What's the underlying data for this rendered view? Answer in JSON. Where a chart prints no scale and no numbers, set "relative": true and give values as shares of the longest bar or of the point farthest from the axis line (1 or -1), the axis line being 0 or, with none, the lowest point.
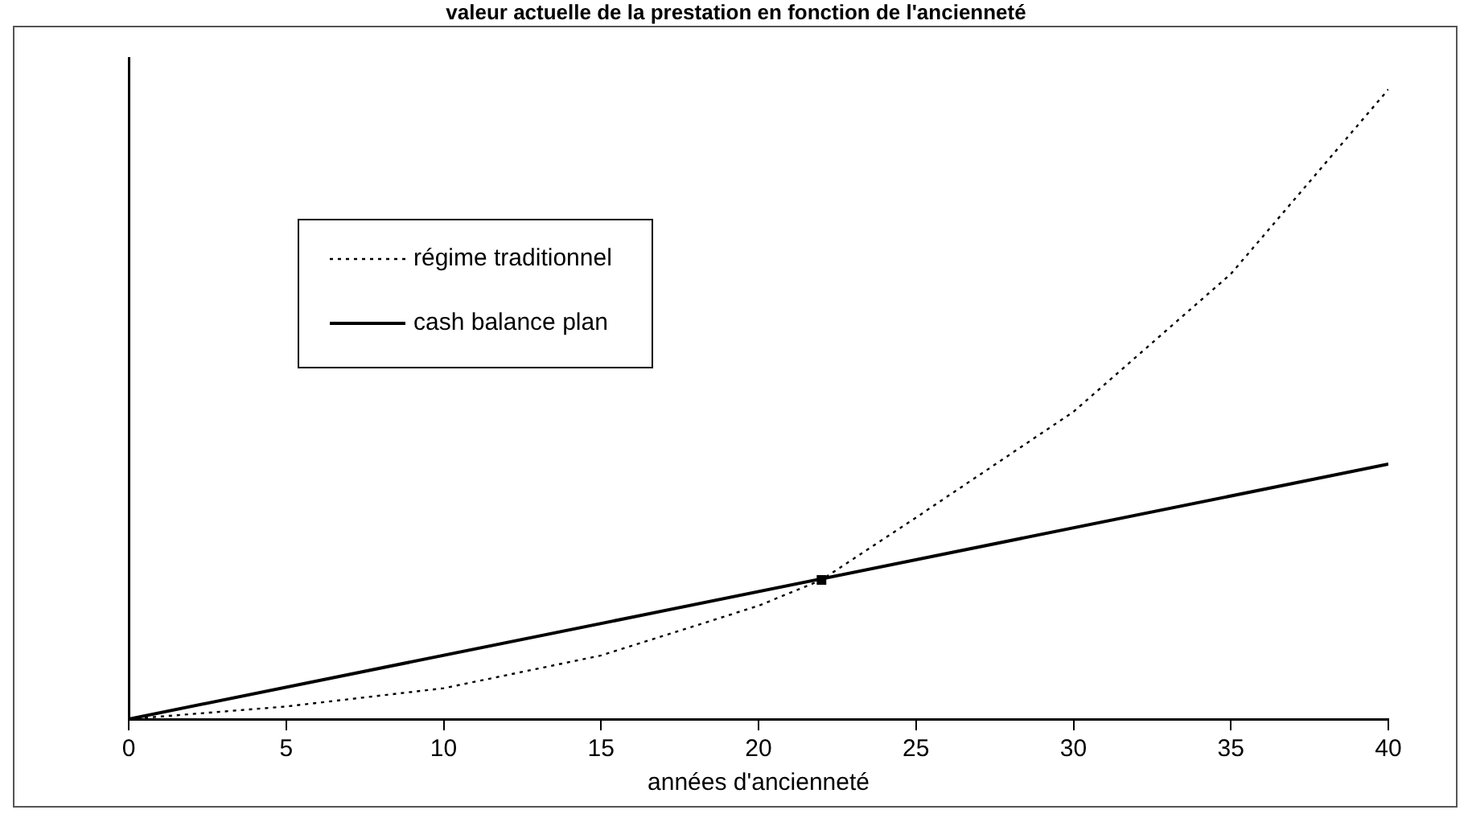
{
  "chart_data": {
    "type": "line",
    "title": "valeur actuelle de la prestation en fonction de l'ancienneté",
    "xlabel": "années d'ancienneté",
    "relative": true,
    "xlim": [
      0,
      40
    ],
    "xticks": [
      0,
      5,
      10,
      15,
      20,
      25,
      30,
      35,
      40
    ],
    "legend": "top left",
    "grid": false,
    "marker": "none",
    "series": [
      {
        "name": "régime traditionnel",
        "color": "#000000",
        "line_style": "dotted",
        "x": [
          0,
          5,
          10,
          15,
          20,
          22,
          25,
          30,
          35,
          40
        ],
        "values": [
          0,
          0.02,
          0.049,
          0.101,
          0.18,
          0.221,
          0.32,
          0.488,
          0.707,
          1
        ]
      },
      {
        "name": "cash balance plan",
        "color": "#000000",
        "line_style": "solid",
        "x": [
          0,
          40
        ],
        "values": [
          0,
          0.405
        ]
      },
      {
        "type": "scatter",
        "marker": "square",
        "color": "#000000",
        "x": [
          22
        ],
        "values": [
          0.221
        ]
      }
    ]
  }
}
